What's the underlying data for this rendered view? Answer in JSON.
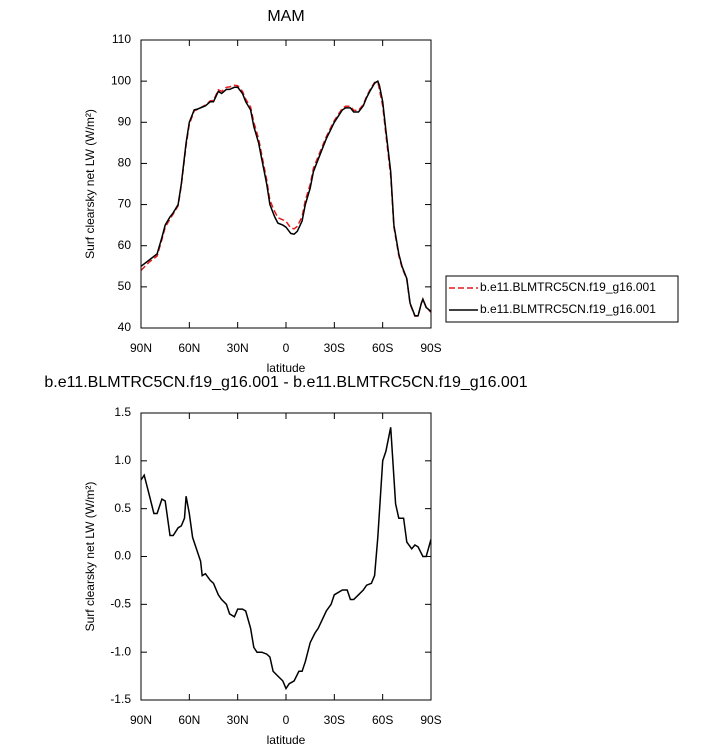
{
  "chart_data": [
    {
      "type": "line",
      "title": "MAM",
      "xlabel": "latitude",
      "ylabel": "Surf clearsky net LW (W/m²)",
      "xlim": [
        90,
        -90
      ],
      "xticks": [
        {
          "value": 90,
          "label": "90N"
        },
        {
          "value": 60,
          "label": "60N"
        },
        {
          "value": 30,
          "label": "30N"
        },
        0,
        {
          "value": -30,
          "label": "30S"
        },
        {
          "value": -60,
          "label": "60S"
        },
        {
          "value": -90,
          "label": "90S"
        }
      ],
      "ylim": [
        40,
        110
      ],
      "yticks": [
        40,
        50,
        60,
        70,
        80,
        90,
        100,
        110
      ],
      "legend": "right",
      "series": [
        {
          "name": "b.e11.BLMTRC5CN.f19_g16.001",
          "color": "#e41a1c",
          "line_style": "dashed",
          "x": [
            90,
            85,
            80,
            77,
            75,
            72,
            70,
            67,
            65,
            62,
            60,
            57,
            55,
            50,
            47,
            45,
            42,
            40,
            37,
            35,
            32,
            30,
            27,
            25,
            22,
            20,
            17,
            15,
            12,
            10,
            7,
            5,
            2,
            0,
            -3,
            -5,
            -7,
            -10,
            -12,
            -15,
            -17,
            -20,
            -25,
            -30,
            -35,
            -37,
            -40,
            -42,
            -45,
            -48,
            -50,
            -52,
            -55,
            -57,
            -58,
            -60,
            -62,
            -65,
            -67,
            -70,
            -72,
            -75,
            -77,
            -80,
            -82,
            -84,
            -85,
            -87,
            -90
          ],
          "values": [
            54,
            56,
            57.5,
            61.5,
            64.5,
            66.5,
            67.7,
            69.7,
            74.6,
            84.4,
            89.5,
            92.8,
            93.1,
            94.2,
            95.2,
            95.3,
            97.9,
            97.5,
            98.5,
            98.6,
            99,
            98.9,
            97.5,
            95.6,
            93.7,
            90,
            86,
            82,
            76,
            71,
            68.3,
            66.8,
            66.3,
            65.9,
            64.3,
            64.1,
            64.7,
            67.1,
            71,
            74.9,
            78.8,
            81.7,
            86.5,
            90.4,
            93.4,
            93.9,
            93.9,
            92.9,
            92.9,
            94.3,
            96.3,
            97.8,
            99.7,
            99.8,
            98,
            94,
            87,
            77,
            64.5,
            57.6,
            54.7,
            51.8,
            45.8,
            42.9,
            42.9,
            46,
            47,
            45,
            43.8
          ]
        },
        {
          "name": "b.e11.BLMTRC5CN.f19_g16.001",
          "color": "#000000",
          "line_style": "solid",
          "x": [
            90,
            85,
            80,
            77,
            75,
            72,
            70,
            67,
            65,
            62,
            60,
            57,
            55,
            50,
            47,
            45,
            42,
            40,
            37,
            35,
            32,
            30,
            27,
            25,
            22,
            20,
            17,
            15,
            12,
            10,
            7,
            5,
            2,
            0,
            -3,
            -5,
            -7,
            -10,
            -12,
            -15,
            -17,
            -20,
            -25,
            -30,
            -35,
            -37,
            -40,
            -42,
            -45,
            -48,
            -50,
            -52,
            -55,
            -57,
            -58,
            -60,
            -62,
            -65,
            -67,
            -70,
            -72,
            -75,
            -77,
            -80,
            -82,
            -84,
            -85,
            -87,
            -90
          ],
          "values": [
            55,
            56.5,
            58,
            62,
            65,
            67,
            68,
            70,
            75,
            85,
            90,
            93,
            93.2,
            94,
            95,
            95,
            97.5,
            97,
            98,
            98,
            98.5,
            98.5,
            97,
            95,
            93,
            89,
            85,
            81,
            75,
            70,
            67,
            65.5,
            65,
            64.5,
            63,
            62.8,
            63.5,
            66,
            70,
            74,
            78,
            81,
            86,
            90,
            93,
            93.5,
            93.5,
            92.5,
            92.5,
            94,
            96,
            97.5,
            99.5,
            100,
            99,
            95,
            88,
            78,
            65,
            58,
            55,
            52,
            46,
            43,
            43,
            46,
            47,
            45,
            44
          ]
        }
      ]
    },
    {
      "type": "line",
      "title": "b.e11.BLMTRC5CN.f19_g16.001 - b.e11.BLMTRC5CN.f19_g16.001",
      "xlabel": "latitude",
      "ylabel": "Surf clearsky net LW (W/m²)",
      "xlim": [
        90,
        -90
      ],
      "xticks": [
        {
          "value": 90,
          "label": "90N"
        },
        {
          "value": 60,
          "label": "60N"
        },
        {
          "value": 30,
          "label": "30N"
        },
        0,
        {
          "value": -30,
          "label": "30S"
        },
        {
          "value": -60,
          "label": "60S"
        },
        {
          "value": -90,
          "label": "90S"
        }
      ],
      "ylim": [
        -1.5,
        1.5
      ],
      "yticks": [
        -1.5,
        {
          "value": -1,
          "label": "-1.0"
        },
        -0.5,
        {
          "value": 0,
          "label": "0.0"
        },
        0.5,
        {
          "value": 1,
          "label": "1.0"
        },
        1.5
      ],
      "series": [
        {
          "color": "#000000",
          "line_style": "solid",
          "x": [
            90,
            88,
            85,
            82,
            80,
            77,
            75,
            72,
            70,
            67,
            65,
            63,
            62,
            60,
            58,
            55,
            53,
            52,
            50,
            47,
            45,
            42,
            40,
            37,
            35,
            32,
            30,
            27,
            25,
            22,
            20,
            18,
            15,
            12,
            10,
            8,
            5,
            2,
            0,
            -2,
            -5,
            -8,
            -10,
            -12,
            -15,
            -18,
            -20,
            -25,
            -28,
            -30,
            -35,
            -38,
            -40,
            -42,
            -45,
            -48,
            -50,
            -53,
            -55,
            -57,
            -60,
            -62,
            -65,
            -68,
            -70,
            -73,
            -75,
            -78,
            -80,
            -82,
            -85,
            -87,
            -90
          ],
          "values": [
            0.8,
            0.85,
            0.65,
            0.45,
            0.45,
            0.6,
            0.58,
            0.22,
            0.22,
            0.3,
            0.32,
            0.4,
            0.63,
            0.45,
            0.2,
            0.05,
            -0.05,
            -0.2,
            -0.18,
            -0.25,
            -0.28,
            -0.4,
            -0.45,
            -0.5,
            -0.6,
            -0.63,
            -0.55,
            -0.55,
            -0.57,
            -0.75,
            -0.95,
            -1.0,
            -1.0,
            -1.02,
            -1.05,
            -1.2,
            -1.25,
            -1.3,
            -1.38,
            -1.33,
            -1.3,
            -1.2,
            -1.2,
            -1.1,
            -0.9,
            -0.8,
            -0.75,
            -0.57,
            -0.5,
            -0.4,
            -0.35,
            -0.35,
            -0.45,
            -0.45,
            -0.4,
            -0.35,
            -0.3,
            -0.28,
            -0.2,
            0.2,
            1.0,
            1.1,
            1.35,
            0.55,
            0.4,
            0.4,
            0.15,
            0.08,
            0.12,
            0.1,
            0.0,
            0.0,
            0.18
          ]
        }
      ]
    }
  ]
}
